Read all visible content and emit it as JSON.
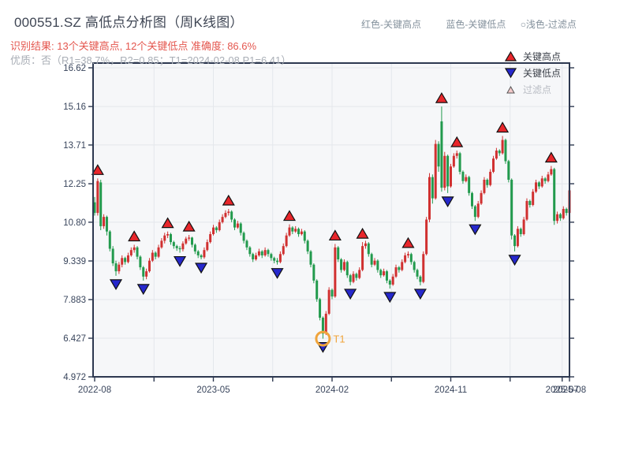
{
  "header": {
    "title": "000551.SZ 高低点分析图（周K线图）",
    "result_line": "识别结果: 13个关键高点, 12个关键低点  准确度: 86.6%",
    "quality_line": "优质：否（R1=38.7%，R2=0.85；T1=2024-02-08 P1=6.41）",
    "top_legend": [
      {
        "label": "红色-关键高点"
      },
      {
        "label": "蓝色-关键低点"
      },
      {
        "label": "○浅色-过滤点"
      }
    ]
  },
  "chart_legend": {
    "key_high": "关键高点",
    "key_low": "关键低点",
    "filtered": "过滤点"
  },
  "colors": {
    "up_candle": "#d03030",
    "down_candle": "#229a4d",
    "key_high_marker": "#e8262b",
    "key_low_marker": "#2628cc",
    "marker_edge": "#111111",
    "filtered_fill": "#f2c9c9",
    "t1_orange": "#f0a43b",
    "axis": "#2d3850",
    "grid": "#e4e7ec",
    "plot_bg": "#f6f7f9",
    "tick_text": "#39455c"
  },
  "chart_data": {
    "type": "candlestick",
    "title": "000551.SZ 高低点分析图（周K线图）",
    "interval": "weekly",
    "x_range": [
      "2022-08",
      "2025-08"
    ],
    "y_ticks": [
      16.62,
      15.16,
      13.71,
      12.25,
      10.8,
      9.339,
      7.883,
      6.427,
      4.972
    ],
    "y_tick_labels": [
      "16.62",
      "15.16",
      "13.71",
      "12.25",
      "10.80",
      "9.339",
      "7.883",
      "6.427",
      "4.972"
    ],
    "x_ticks": [
      {
        "label": "2022-08",
        "week": 0
      },
      {
        "label": "",
        "week": 19.5
      },
      {
        "label": "2023-05",
        "week": 39
      },
      {
        "label": "",
        "week": 58.5
      },
      {
        "label": "2024-02",
        "week": 78
      },
      {
        "label": "",
        "week": 97.5
      },
      {
        "label": "2024-11",
        "week": 117
      },
      {
        "label": "",
        "week": 136.5
      },
      {
        "label": "2025-07",
        "week": 153.6
      },
      {
        "label": "2025-08",
        "week": 156
      }
    ],
    "ohlc_order": [
      "open",
      "high",
      "low",
      "close"
    ],
    "candles": [
      [
        11.55,
        11.75,
        11.05,
        11.15
      ],
      [
        11.15,
        12.45,
        11.05,
        12.35
      ],
      [
        12.3,
        12.4,
        10.5,
        10.65
      ],
      [
        10.65,
        11.1,
        10.55,
        11.0
      ],
      [
        11.0,
        11.05,
        10.3,
        10.45
      ],
      [
        10.45,
        10.5,
        9.7,
        9.8
      ],
      [
        9.8,
        9.9,
        9.15,
        9.25
      ],
      [
        9.25,
        9.35,
        8.78,
        8.95
      ],
      [
        8.95,
        9.3,
        8.85,
        9.2
      ],
      [
        9.2,
        9.55,
        9.1,
        9.45
      ],
      [
        9.45,
        9.5,
        9.2,
        9.3
      ],
      [
        9.3,
        9.65,
        9.25,
        9.55
      ],
      [
        9.55,
        9.85,
        9.5,
        9.75
      ],
      [
        9.75,
        9.95,
        9.65,
        9.85
      ],
      [
        9.85,
        9.9,
        9.4,
        9.5
      ],
      [
        9.5,
        9.55,
        9.0,
        9.1
      ],
      [
        9.1,
        9.15,
        8.6,
        8.75
      ],
      [
        8.75,
        9.05,
        8.65,
        8.95
      ],
      [
        8.95,
        9.45,
        8.9,
        9.35
      ],
      [
        9.35,
        9.75,
        9.3,
        9.65
      ],
      [
        9.65,
        9.7,
        9.4,
        9.5
      ],
      [
        9.5,
        9.95,
        9.45,
        9.85
      ],
      [
        9.85,
        10.2,
        9.8,
        10.1
      ],
      [
        10.1,
        10.4,
        10.0,
        10.3
      ],
      [
        10.3,
        10.45,
        10.2,
        10.35
      ],
      [
        10.35,
        10.4,
        9.95,
        10.05
      ],
      [
        10.05,
        10.1,
        9.8,
        9.9
      ],
      [
        9.9,
        9.95,
        9.72,
        9.82
      ],
      [
        9.82,
        9.9,
        9.65,
        9.78
      ],
      [
        9.78,
        10.08,
        9.7,
        10.0
      ],
      [
        10.0,
        10.25,
        9.95,
        10.18
      ],
      [
        10.18,
        10.32,
        10.1,
        10.22
      ],
      [
        10.22,
        10.25,
        9.85,
        9.95
      ],
      [
        9.95,
        10.0,
        9.6,
        9.7
      ],
      [
        9.7,
        9.75,
        9.45,
        9.55
      ],
      [
        9.55,
        9.6,
        9.4,
        9.48
      ],
      [
        9.48,
        9.85,
        9.42,
        9.75
      ],
      [
        9.75,
        10.15,
        9.7,
        10.05
      ],
      [
        10.05,
        10.45,
        10.0,
        10.35
      ],
      [
        10.35,
        10.7,
        10.3,
        10.6
      ],
      [
        10.6,
        10.65,
        10.4,
        10.5
      ],
      [
        10.5,
        10.9,
        10.45,
        10.8
      ],
      [
        10.8,
        11.1,
        10.75,
        11.0
      ],
      [
        11.0,
        11.25,
        10.95,
        11.15
      ],
      [
        11.15,
        11.3,
        11.05,
        11.2
      ],
      [
        11.2,
        11.25,
        10.8,
        10.9
      ],
      [
        10.9,
        10.95,
        10.5,
        10.6
      ],
      [
        10.6,
        10.85,
        10.55,
        10.75
      ],
      [
        10.75,
        10.8,
        10.3,
        10.4
      ],
      [
        10.4,
        10.45,
        10.0,
        10.1
      ],
      [
        10.1,
        10.15,
        9.75,
        9.85
      ],
      [
        9.85,
        9.9,
        9.5,
        9.6
      ],
      [
        9.6,
        9.65,
        9.3,
        9.4
      ],
      [
        9.4,
        9.65,
        9.35,
        9.55
      ],
      [
        9.55,
        9.8,
        9.5,
        9.7
      ],
      [
        9.7,
        9.75,
        9.45,
        9.55
      ],
      [
        9.55,
        9.85,
        9.5,
        9.75
      ],
      [
        9.75,
        9.8,
        9.5,
        9.6
      ],
      [
        9.6,
        9.65,
        9.35,
        9.45
      ],
      [
        9.45,
        9.5,
        9.25,
        9.35
      ],
      [
        9.35,
        9.45,
        9.2,
        9.3
      ],
      [
        9.3,
        9.7,
        9.25,
        9.6
      ],
      [
        9.6,
        10.0,
        9.55,
        9.9
      ],
      [
        9.9,
        10.4,
        9.85,
        10.3
      ],
      [
        10.3,
        10.72,
        10.25,
        10.6
      ],
      [
        10.6,
        10.65,
        10.35,
        10.45
      ],
      [
        10.45,
        10.65,
        10.4,
        10.55
      ],
      [
        10.55,
        10.6,
        10.25,
        10.35
      ],
      [
        10.35,
        10.55,
        10.3,
        10.45
      ],
      [
        10.45,
        10.5,
        10.0,
        10.1
      ],
      [
        10.1,
        10.15,
        9.6,
        9.7
      ],
      [
        9.7,
        9.75,
        9.1,
        9.2
      ],
      [
        9.2,
        9.25,
        8.5,
        8.6
      ],
      [
        8.6,
        8.65,
        7.8,
        7.9
      ],
      [
        7.9,
        7.95,
        7.1,
        7.2
      ],
      [
        7.2,
        7.25,
        6.41,
        6.6
      ],
      [
        6.6,
        7.45,
        6.55,
        7.35
      ],
      [
        7.35,
        8.35,
        7.3,
        8.25
      ],
      [
        8.25,
        8.3,
        7.9,
        8.0
      ],
      [
        8.0,
        9.98,
        7.95,
        9.85
      ],
      [
        9.85,
        9.9,
        9.3,
        9.4
      ],
      [
        9.4,
        9.45,
        8.9,
        9.0
      ],
      [
        9.0,
        9.4,
        8.95,
        9.3
      ],
      [
        9.3,
        9.35,
        8.7,
        8.8
      ],
      [
        8.8,
        8.85,
        8.42,
        8.55
      ],
      [
        8.55,
        8.95,
        8.5,
        8.85
      ],
      [
        8.85,
        8.9,
        8.6,
        8.7
      ],
      [
        8.7,
        9.1,
        8.65,
        9.0
      ],
      [
        9.0,
        10.05,
        8.95,
        9.9
      ],
      [
        9.9,
        10.1,
        9.8,
        10.0
      ],
      [
        10.0,
        10.05,
        9.5,
        9.6
      ],
      [
        9.6,
        9.65,
        9.1,
        9.2
      ],
      [
        9.2,
        9.45,
        9.15,
        9.35
      ],
      [
        9.35,
        9.4,
        8.9,
        9.0
      ],
      [
        9.0,
        9.05,
        8.7,
        8.8
      ],
      [
        8.8,
        9.05,
        8.75,
        8.95
      ],
      [
        8.95,
        9.0,
        8.5,
        8.6
      ],
      [
        8.6,
        8.65,
        8.3,
        8.45
      ],
      [
        8.45,
        8.85,
        8.4,
        8.75
      ],
      [
        8.75,
        9.2,
        8.7,
        9.1
      ],
      [
        9.1,
        9.15,
        8.9,
        9.0
      ],
      [
        9.0,
        9.4,
        8.95,
        9.3
      ],
      [
        9.3,
        9.65,
        9.25,
        9.55
      ],
      [
        9.55,
        9.7,
        9.45,
        9.6
      ],
      [
        9.6,
        9.65,
        9.2,
        9.3
      ],
      [
        9.3,
        9.35,
        8.9,
        9.0
      ],
      [
        9.0,
        9.05,
        8.65,
        8.75
      ],
      [
        8.75,
        8.8,
        8.42,
        8.55
      ],
      [
        8.55,
        9.7,
        8.5,
        9.6
      ],
      [
        9.6,
        11.0,
        9.55,
        10.9
      ],
      [
        10.9,
        12.65,
        10.8,
        12.5
      ],
      [
        12.5,
        12.6,
        11.5,
        11.7
      ],
      [
        11.7,
        13.9,
        11.65,
        13.75
      ],
      [
        13.75,
        13.85,
        12.7,
        12.9
      ],
      [
        14.6,
        15.16,
        11.95,
        12.1
      ],
      [
        12.1,
        13.45,
        12.0,
        13.3
      ],
      [
        13.3,
        13.35,
        11.9,
        12.15
      ],
      [
        12.15,
        13.0,
        12.1,
        12.9
      ],
      [
        12.9,
        13.4,
        12.85,
        13.3
      ],
      [
        13.3,
        13.5,
        13.2,
        13.4
      ],
      [
        13.4,
        13.45,
        12.6,
        12.7
      ],
      [
        12.7,
        12.75,
        12.25,
        12.35
      ],
      [
        12.35,
        12.6,
        12.3,
        12.5
      ],
      [
        12.5,
        12.55,
        11.8,
        11.9
      ],
      [
        11.9,
        11.95,
        11.3,
        11.4
      ],
      [
        11.4,
        11.45,
        10.85,
        11.0
      ],
      [
        11.0,
        11.6,
        10.95,
        11.5
      ],
      [
        11.5,
        12.0,
        11.45,
        11.9
      ],
      [
        11.9,
        12.5,
        11.85,
        12.4
      ],
      [
        12.4,
        12.45,
        12.1,
        12.2
      ],
      [
        12.2,
        12.8,
        12.15,
        12.7
      ],
      [
        12.7,
        13.3,
        12.65,
        13.2
      ],
      [
        13.2,
        13.6,
        13.15,
        13.5
      ],
      [
        13.5,
        13.55,
        13.3,
        13.4
      ],
      [
        13.4,
        14.05,
        13.35,
        13.9
      ],
      [
        13.9,
        13.95,
        13.0,
        13.1
      ],
      [
        13.1,
        13.15,
        12.3,
        12.4
      ],
      [
        12.4,
        12.45,
        10.15,
        10.3
      ],
      [
        10.3,
        10.35,
        9.7,
        9.9
      ],
      [
        9.9,
        10.65,
        9.85,
        10.55
      ],
      [
        10.55,
        10.6,
        10.25,
        10.35
      ],
      [
        10.35,
        11.0,
        10.3,
        10.9
      ],
      [
        10.9,
        11.7,
        10.85,
        11.6
      ],
      [
        11.6,
        11.65,
        11.35,
        11.45
      ],
      [
        11.45,
        12.05,
        11.4,
        11.95
      ],
      [
        11.95,
        12.4,
        11.9,
        12.3
      ],
      [
        12.3,
        12.35,
        12.05,
        12.15
      ],
      [
        12.15,
        12.55,
        12.1,
        12.45
      ],
      [
        12.45,
        12.5,
        12.25,
        12.35
      ],
      [
        12.35,
        12.7,
        12.3,
        12.6
      ],
      [
        12.6,
        12.92,
        12.55,
        12.8
      ],
      [
        12.8,
        12.85,
        10.7,
        10.85
      ],
      [
        10.85,
        11.2,
        10.75,
        11.1
      ],
      [
        11.1,
        11.15,
        10.85,
        10.95
      ],
      [
        10.95,
        11.4,
        10.9,
        11.3
      ],
      [
        11.3,
        11.35,
        11.05,
        11.15
      ],
      [
        11.15,
        12.2,
        11.1,
        12.0
      ]
    ],
    "key_high_weeks": [
      1,
      13,
      24,
      31,
      44,
      64,
      79,
      88,
      103,
      114,
      119,
      134,
      150
    ],
    "key_low_weeks": [
      7,
      16,
      28,
      35,
      60,
      75,
      84,
      97,
      107,
      116,
      125,
      138
    ],
    "key_high_count": 13,
    "key_low_count": 12,
    "accuracy": "86.6%",
    "t1": {
      "week": 75,
      "price": 6.41,
      "date": "2024-02-08",
      "label": "T1"
    }
  }
}
